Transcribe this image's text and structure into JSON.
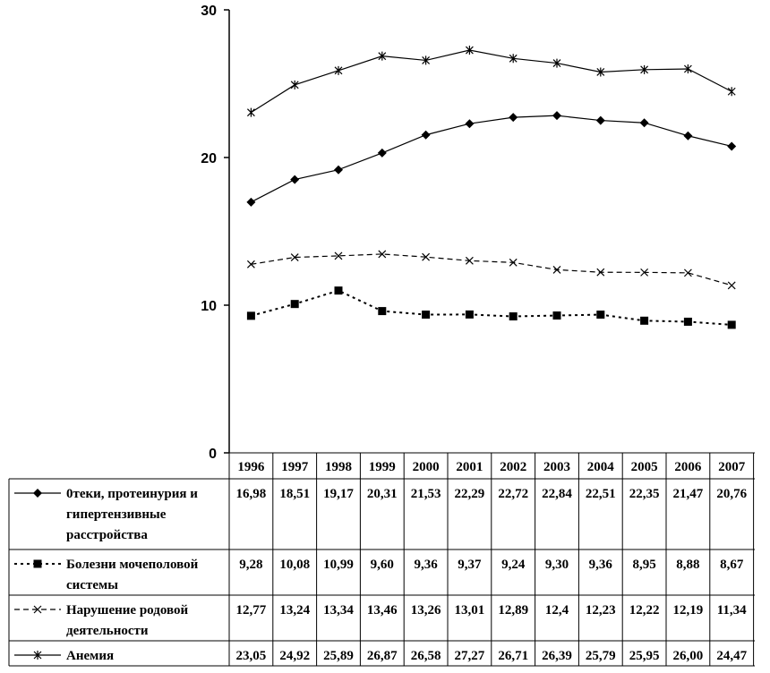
{
  "chart_data": {
    "type": "line",
    "title": "",
    "xlabel": "",
    "ylabel": "",
    "ylim": [
      0,
      30
    ],
    "yticks": [
      0,
      10,
      20,
      30
    ],
    "grid": false,
    "legend": "table-below",
    "categories": [
      "1996",
      "1997",
      "1998",
      "1999",
      "2000",
      "2001",
      "2002",
      "2003",
      "2004",
      "2005",
      "2006",
      "2007"
    ],
    "series": [
      {
        "name_lines": [
          "0теки, протеинурия и",
          "гипертензивные",
          "расстройства"
        ],
        "line_style": "solid",
        "marker": "diamond",
        "color": "#000000",
        "values": [
          16.98,
          18.51,
          19.17,
          20.31,
          21.53,
          22.29,
          22.72,
          22.84,
          22.51,
          22.35,
          21.47,
          20.76
        ],
        "labels": [
          "16,98",
          "18,51",
          "19,17",
          "20,31",
          "21,53",
          "22,29",
          "22,72",
          "22,84",
          "22,51",
          "22,35",
          "21,47",
          "20,76"
        ]
      },
      {
        "name_lines": [
          "Болезни мочеполовой",
          "системы"
        ],
        "line_style": "dotted",
        "marker": "square",
        "color": "#000000",
        "values": [
          9.28,
          10.08,
          10.99,
          9.6,
          9.36,
          9.37,
          9.24,
          9.3,
          9.36,
          8.95,
          8.88,
          8.67
        ],
        "labels": [
          "9,28",
          "10,08",
          "10,99",
          "9,60",
          "9,36",
          "9,37",
          "9,24",
          "9,30",
          "9,36",
          "8,95",
          "8,88",
          "8,67"
        ]
      },
      {
        "name_lines": [
          "Нарушение родовой",
          "деятельности"
        ],
        "line_style": "dashed",
        "marker": "x",
        "color": "#000000",
        "values": [
          12.77,
          13.24,
          13.34,
          13.46,
          13.26,
          13.01,
          12.89,
          12.4,
          12.23,
          12.22,
          12.19,
          11.34
        ],
        "labels": [
          "12,77",
          "13,24",
          "13,34",
          "13,46",
          "13,26",
          "13,01",
          "12,89",
          "12,4",
          "12,23",
          "12,22",
          "12,19",
          "11,34"
        ]
      },
      {
        "name_lines": [
          "Анемия"
        ],
        "line_style": "solid",
        "marker": "star",
        "color": "#000000",
        "values": [
          23.05,
          24.92,
          25.89,
          26.87,
          26.58,
          27.27,
          26.71,
          26.39,
          25.79,
          25.95,
          26.0,
          24.47
        ],
        "labels": [
          "23,05",
          "24,92",
          "25,89",
          "26,87",
          "26,58",
          "27,27",
          "26,71",
          "26,39",
          "25,79",
          "25,95",
          "26,00",
          "24,47"
        ]
      }
    ]
  }
}
